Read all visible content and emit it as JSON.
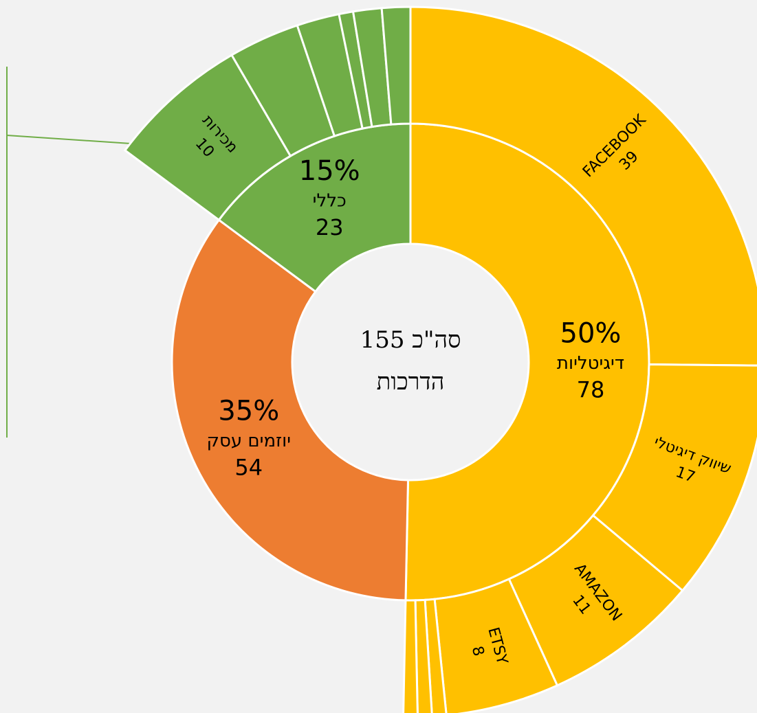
{
  "chart_data": {
    "type": "sunburst",
    "center_label": "סה\"כ 155",
    "center_label_2": "הדרכות",
    "series": [
      {
        "name": "דיגיטליות",
        "color": "#FFC000",
        "value": 78,
        "percent_label": "50%",
        "children": {
          "categories": [
            "FACEBOOK",
            "שיווק דיגיטלי",
            "AMAZON",
            "ETSY",
            null,
            null,
            null
          ],
          "values": [
            39,
            17,
            11,
            8,
            1,
            1,
            1
          ]
        }
      },
      {
        "name": "יוזמים עסק",
        "color": "#ED7D31",
        "value": 54,
        "percent_label": "35%",
        "children": {
          "categories": [],
          "values": []
        }
      },
      {
        "name": "כללי",
        "color": "#70AD47",
        "value": 23,
        "percent_label": "15%",
        "children": {
          "categories": [
            "מכירות",
            null,
            null,
            null,
            null,
            null
          ],
          "values": [
            10,
            5,
            3,
            1,
            2,
            2
          ]
        }
      }
    ]
  }
}
